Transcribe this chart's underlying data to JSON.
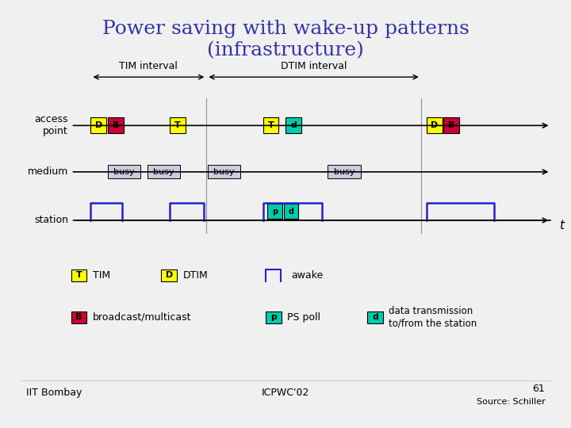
{
  "title_line1": "Power saving with wake-up patterns",
  "title_line2": "(infrastructure)",
  "title_color": "#3333aa",
  "bg_color": "#f0f0f0",
  "label_access_point": "access\npoint",
  "label_medium": "medium",
  "label_station": "station",
  "tim_interval_label": "TIM interval",
  "dtim_interval_label": "DTIM interval",
  "footer_left": "IIT Bombay",
  "footer_center": "ICPWC'02",
  "footer_right_line1": "61",
  "footer_right_line2": "Source: Schiller",
  "colors": {
    "yellow": "#ffff00",
    "red": "#cc0033",
    "cyan": "#00ccaa",
    "blue_line": "#2222cc",
    "gray_busy": "#ccccdd",
    "black": "#000000",
    "white": "#ffffff"
  }
}
